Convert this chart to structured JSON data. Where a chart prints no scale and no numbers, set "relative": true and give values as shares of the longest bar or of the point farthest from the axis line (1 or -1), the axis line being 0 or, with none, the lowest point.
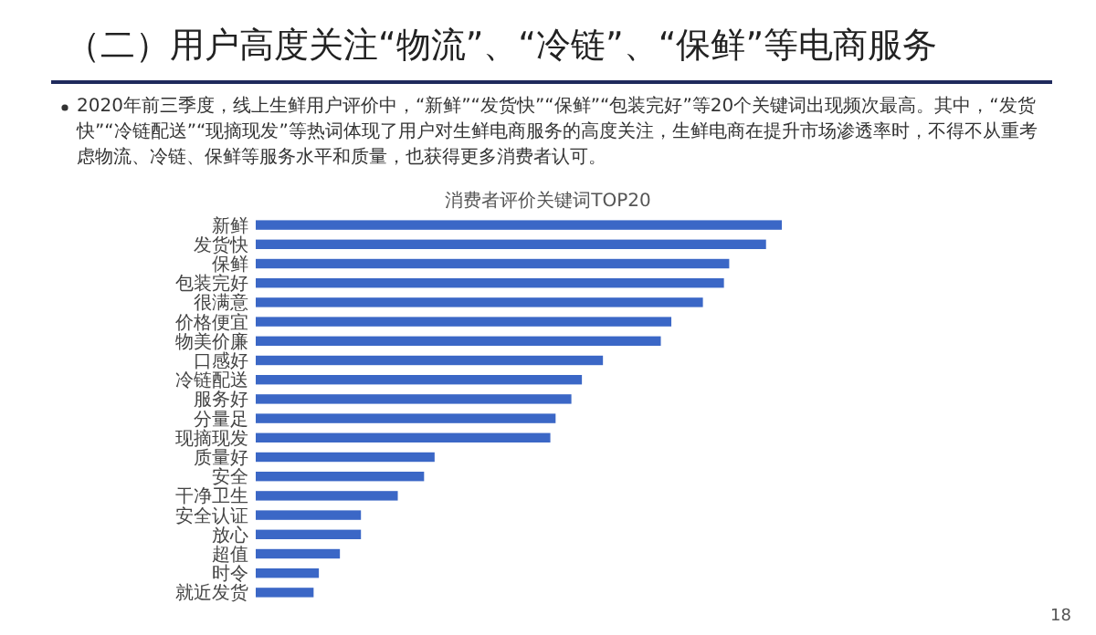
{
  "chart_data": {
    "type": "bar",
    "orientation": "horizontal",
    "relative": true,
    "title": "消费者评价关键词TOP20",
    "categories": [
      "新鲜",
      "发货快",
      "保鲜",
      "包装完好",
      "很满意",
      "价格便宜",
      "物美价廉",
      "口感好",
      "冷链配送",
      "服务好",
      "分量足",
      "现摘现发",
      "质量好",
      "安全",
      "干净卫生",
      "安全认证",
      "放心",
      "超值",
      "时令",
      "就近发货"
    ],
    "values": [
      1,
      0.97,
      0.9,
      0.89,
      0.85,
      0.79,
      0.77,
      0.66,
      0.62,
      0.6,
      0.57,
      0.56,
      0.34,
      0.32,
      0.27,
      0.2,
      0.2,
      0.16,
      0.12,
      0.11
    ],
    "color": "#3b67c6",
    "annotations": [
      "（二）用户高度关注“物流”、“冷链”、“保鲜”等电商服务",
      "2020年前三季度，线上生鲜用户评价中，“新鲜”“发货快”“保鲜”“包装完好”等20个关键词出现频次最高。其中，“发货快”“冷链配送”“现摘现发”等热词体现了用户对生鲜电商服务的高度关注，生鲜电商在提升市场渗透率时，不得不从重考虑物流、冷链、保鲜等服务水平和质量，也获得更多消费者认可。",
      "18"
    ]
  }
}
